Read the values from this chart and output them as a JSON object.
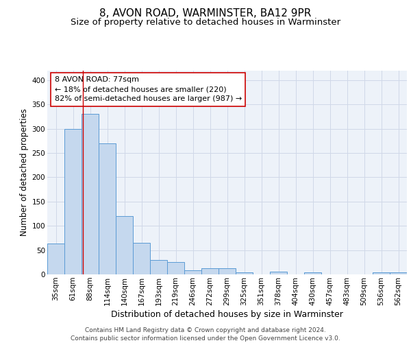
{
  "title1": "8, AVON ROAD, WARMINSTER, BA12 9PR",
  "title2": "Size of property relative to detached houses in Warminster",
  "xlabel": "Distribution of detached houses by size in Warminster",
  "ylabel": "Number of detached properties",
  "bar_labels": [
    "35sqm",
    "61sqm",
    "88sqm",
    "114sqm",
    "140sqm",
    "167sqm",
    "193sqm",
    "219sqm",
    "246sqm",
    "272sqm",
    "299sqm",
    "325sqm",
    "351sqm",
    "378sqm",
    "404sqm",
    "430sqm",
    "457sqm",
    "483sqm",
    "509sqm",
    "536sqm",
    "562sqm"
  ],
  "bar_values": [
    63,
    300,
    330,
    270,
    120,
    65,
    29,
    25,
    8,
    13,
    13,
    4,
    0,
    5,
    0,
    4,
    0,
    0,
    0,
    4,
    4
  ],
  "bar_color": "#c5d8ee",
  "bar_edge_color": "#5b9bd5",
  "grid_color": "#d0d8e8",
  "background_color": "#edf2f9",
  "annotation_line1": "8 AVON ROAD: 77sqm",
  "annotation_line2": "← 18% of detached houses are smaller (220)",
  "annotation_line3": "82% of semi-detached houses are larger (987) →",
  "ylim": [
    0,
    420
  ],
  "yticks": [
    0,
    50,
    100,
    150,
    200,
    250,
    300,
    350,
    400
  ],
  "footer_text": "Contains HM Land Registry data © Crown copyright and database right 2024.\nContains public sector information licensed under the Open Government Licence v3.0.",
  "title1_fontsize": 11,
  "title2_fontsize": 9.5,
  "xlabel_fontsize": 9,
  "ylabel_fontsize": 8.5,
  "tick_fontsize": 7.5,
  "annotation_fontsize": 8,
  "footer_fontsize": 6.5
}
